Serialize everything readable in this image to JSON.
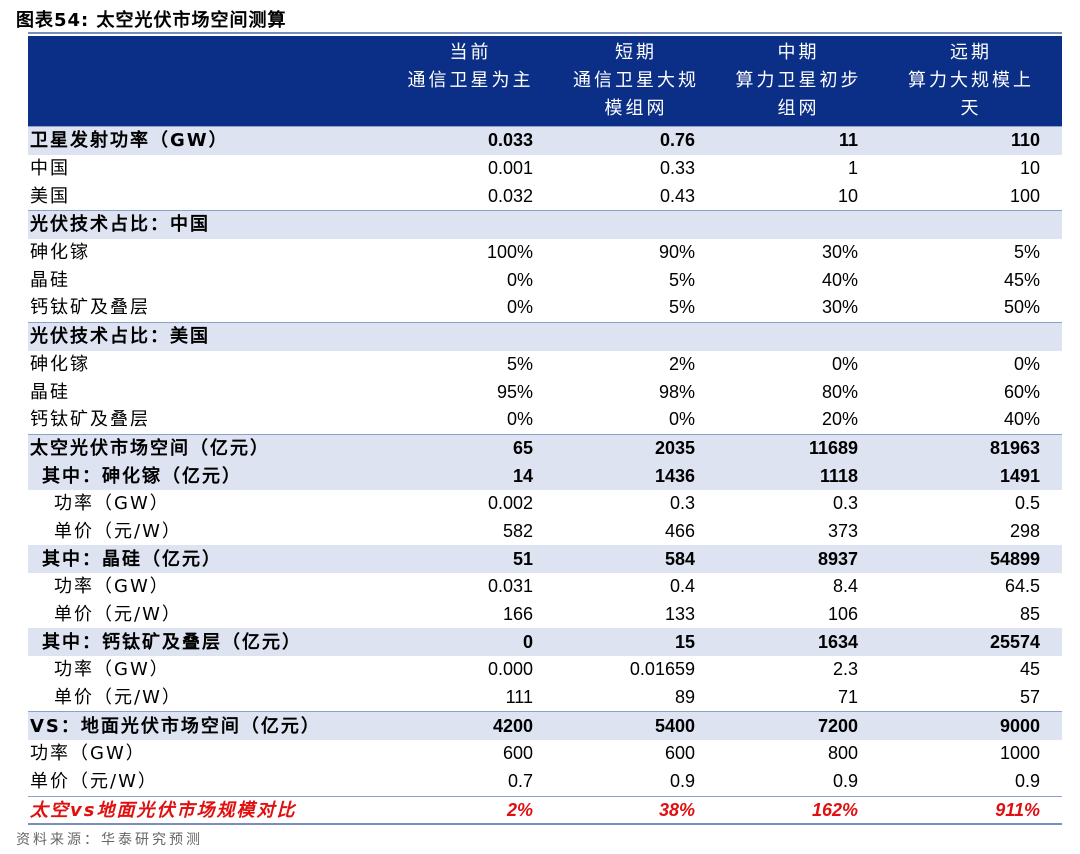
{
  "figure_title": "图表54:  太空光伏市场空间测算",
  "columns": [
    {
      "line1": "当前",
      "line2": "通信卫星为主",
      "line3": ""
    },
    {
      "line1": "短期",
      "line2": "通信卫星大规",
      "line3": "模组网"
    },
    {
      "line1": "中期",
      "line2": "算力卫星初步",
      "line3": "组网"
    },
    {
      "line1": "远期",
      "line2": "算力大规模上",
      "line3": "天"
    }
  ],
  "rows": [
    {
      "label": "卫星发射功率（GW）",
      "values": [
        "0.033",
        "0.76",
        "11",
        "110"
      ],
      "style": "sec b sep"
    },
    {
      "label": "中国",
      "values": [
        "0.001",
        "0.33",
        "1",
        "10"
      ],
      "style": ""
    },
    {
      "label": "美国",
      "values": [
        "0.032",
        "0.43",
        "10",
        "100"
      ],
      "style": ""
    },
    {
      "label": "光伏技术占比：中国",
      "values": [
        "",
        "",
        "",
        ""
      ],
      "style": "sec b sep"
    },
    {
      "label": "砷化镓",
      "values": [
        "100%",
        "90%",
        "30%",
        "5%"
      ],
      "style": ""
    },
    {
      "label": "晶硅",
      "values": [
        "0%",
        "5%",
        "40%",
        "45%"
      ],
      "style": ""
    },
    {
      "label": "钙钛矿及叠层",
      "values": [
        "0%",
        "5%",
        "30%",
        "50%"
      ],
      "style": ""
    },
    {
      "label": "光伏技术占比：美国",
      "values": [
        "",
        "",
        "",
        ""
      ],
      "style": "sec b sep"
    },
    {
      "label": "砷化镓",
      "values": [
        "5%",
        "2%",
        "0%",
        "0%"
      ],
      "style": ""
    },
    {
      "label": "晶硅",
      "values": [
        "95%",
        "98%",
        "80%",
        "60%"
      ],
      "style": ""
    },
    {
      "label": "钙钛矿及叠层",
      "values": [
        "0%",
        "0%",
        "20%",
        "40%"
      ],
      "style": ""
    },
    {
      "label": "太空光伏市场空间（亿元）",
      "values": [
        "65",
        "2035",
        "11689",
        "81963"
      ],
      "style": "sec b sep"
    },
    {
      "label": "其中：砷化镓（亿元）",
      "values": [
        "14",
        "1436",
        "1118",
        "1491"
      ],
      "style": "sec b ind1"
    },
    {
      "label": "功率（GW）",
      "values": [
        "0.002",
        "0.3",
        "0.3",
        "0.5"
      ],
      "style": "ind2"
    },
    {
      "label": "单价（元/W）",
      "values": [
        "582",
        "466",
        "373",
        "298"
      ],
      "style": "ind2"
    },
    {
      "label": "其中：晶硅（亿元）",
      "values": [
        "51",
        "584",
        "8937",
        "54899"
      ],
      "style": "sec b ind1"
    },
    {
      "label": "功率（GW）",
      "values": [
        "0.031",
        "0.4",
        "8.4",
        "64.5"
      ],
      "style": "ind2"
    },
    {
      "label": "单价（元/W）",
      "values": [
        "166",
        "133",
        "106",
        "85"
      ],
      "style": "ind2"
    },
    {
      "label": "其中：钙钛矿及叠层（亿元）",
      "values": [
        "0",
        "15",
        "1634",
        "25574"
      ],
      "style": "sec b ind1"
    },
    {
      "label": "功率（GW）",
      "values": [
        "0.000",
        "0.01659",
        "2.3",
        "45"
      ],
      "style": "ind2"
    },
    {
      "label": "单价（元/W）",
      "values": [
        "111",
        "89",
        "71",
        "57"
      ],
      "style": "ind2"
    },
    {
      "label": "VS：地面光伏市场空间（亿元）",
      "values": [
        "4200",
        "5400",
        "7200",
        "9000"
      ],
      "style": "sec b sep"
    },
    {
      "label": "功率（GW）",
      "values": [
        "600",
        "600",
        "800",
        "1000"
      ],
      "style": ""
    },
    {
      "label": "单价（元/W）",
      "values": [
        "0.7",
        "0.9",
        "0.9",
        "0.9"
      ],
      "style": ""
    },
    {
      "label": "太空vs地面光伏市场规模对比",
      "values": [
        "2%",
        "38%",
        "162%",
        "911%"
      ],
      "style": "red sep"
    }
  ],
  "source": "资料来源：华泰研究预测",
  "colors": {
    "header_bg": "#0b2e86",
    "section_bg": "#dde3f1",
    "highlight_text": "#e01010",
    "rule": "#7a8fbf"
  }
}
